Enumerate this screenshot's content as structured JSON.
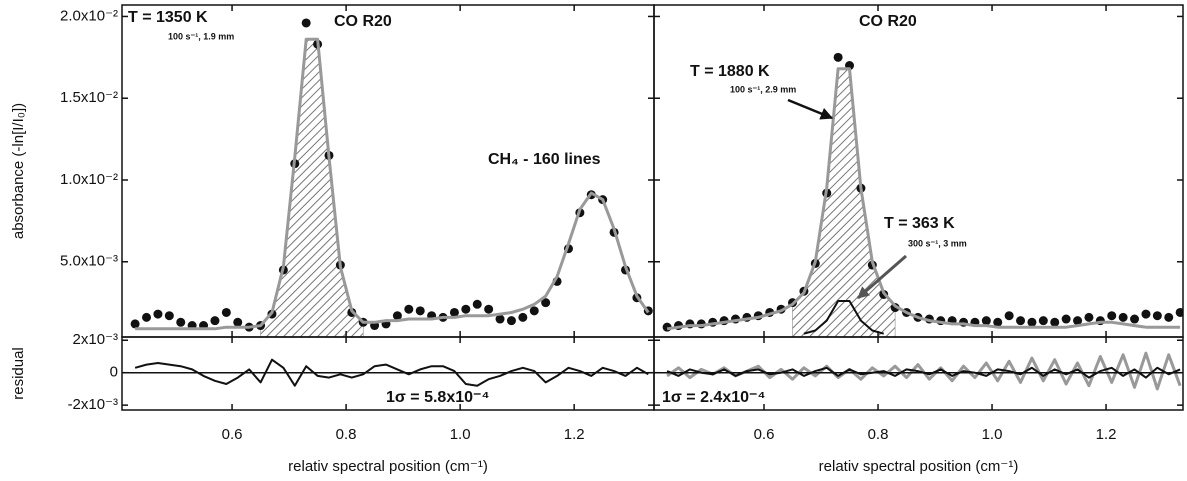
{
  "chart_data": [
    {
      "type": "scatter",
      "ylim": [
        0.0004,
        0.0207
      ],
      "xlim": [
        0.407,
        1.34
      ],
      "yticks": [
        {
          "value": 0.005,
          "label": "5.0x10⁻³"
        },
        {
          "value": 0.01,
          "label": "1.0x10⁻²"
        },
        {
          "value": 0.015,
          "label": "1.5x10⁻²"
        },
        {
          "value": 0.02,
          "label": "2.0x10⁻²"
        }
      ],
      "ytick_labels": true,
      "xticks": [
        0.6,
        0.8,
        1,
        1.2
      ],
      "xtick_labels": false,
      "ylabel": "absorbance (-ln[I/I₀])",
      "annotations": [
        "T = 1350 K",
        "100 s⁻¹, 1.9 mm",
        "CO R20",
        "CH₄ - 160 lines"
      ],
      "x": [
        0.43,
        0.45,
        0.47,
        0.49,
        0.51,
        0.53,
        0.55,
        0.57,
        0.59,
        0.61,
        0.63,
        0.65,
        0.67,
        0.69,
        0.71,
        0.73,
        0.75,
        0.77,
        0.79,
        0.81,
        0.83,
        0.85,
        0.87,
        0.89,
        0.91,
        0.93,
        0.95,
        0.97,
        0.99,
        1.01,
        1.03,
        1.05,
        1.07,
        1.09,
        1.11,
        1.13,
        1.15,
        1.17,
        1.19,
        1.21,
        1.23,
        1.25,
        1.27,
        1.29,
        1.31,
        1.33
      ],
      "series": [
        {
          "type": "hatched-area",
          "color": "#777",
          "x": [
            0.65,
            0.67,
            0.69,
            0.71,
            0.73,
            0.75,
            0.77,
            0.79,
            0.81,
            0.83
          ],
          "values": [
            0.0011,
            0.0019,
            0.0047,
            0.0114,
            0.0186,
            0.0186,
            0.0114,
            0.0047,
            0.002,
            0.0013
          ]
        },
        {
          "type": "scatter",
          "color": "#111",
          "values": [
            0.0012,
            0.0016,
            0.0018,
            0.0017,
            0.0013,
            0.0011,
            0.0011,
            0.0014,
            0.0019,
            0.0013,
            0.001,
            0.0011,
            0.0018,
            0.0045,
            0.011,
            0.0196,
            0.0183,
            0.0115,
            0.0048,
            0.0019,
            0.0013,
            0.0011,
            0.0012,
            0.0017,
            0.0021,
            0.002,
            0.0017,
            0.0016,
            0.0019,
            0.0021,
            0.0024,
            0.0021,
            0.0015,
            0.0014,
            0.0016,
            0.002,
            0.0025,
            0.0038,
            0.0058,
            0.008,
            0.0091,
            0.0088,
            0.0068,
            0.0045,
            0.0028,
            0.002
          ]
        },
        {
          "type": "line",
          "color": "#999",
          "values": [
            0.0009,
            0.0009,
            0.0009,
            0.0009,
            0.0009,
            0.0009,
            0.0009,
            0.0009,
            0.001,
            0.001,
            0.001,
            0.0011,
            0.0019,
            0.0047,
            0.0114,
            0.0186,
            0.0186,
            0.0114,
            0.0047,
            0.002,
            0.0013,
            0.0013,
            0.0014,
            0.0014,
            0.0015,
            0.0015,
            0.0015,
            0.0016,
            0.0016,
            0.0017,
            0.0017,
            0.0017,
            0.0018,
            0.0019,
            0.0021,
            0.0024,
            0.0029,
            0.0041,
            0.0061,
            0.0082,
            0.0092,
            0.0088,
            0.007,
            0.0047,
            0.0029,
            0.0019
          ]
        }
      ]
    },
    {
      "type": "line",
      "ylim": [
        -0.0023,
        0.0022
      ],
      "xlim": [
        0.407,
        1.34
      ],
      "yticks": [
        {
          "value": -0.002,
          "label": "-2x10⁻³"
        },
        0,
        {
          "value": 0.002,
          "label": "2x10⁻³"
        }
      ],
      "ytick_labels": true,
      "xticks": [
        0.6,
        0.8,
        {
          "value": 1,
          "label": "1.0"
        },
        1.2
      ],
      "xtick_labels": true,
      "zero_line": true,
      "ylabel": "residual",
      "xlabel": "relativ spectral position (cm⁻¹)",
      "annotations": [
        "1σ = 5.8x10⁻⁴"
      ],
      "x": [
        0.43,
        0.45,
        0.47,
        0.49,
        0.51,
        0.53,
        0.55,
        0.57,
        0.59,
        0.61,
        0.63,
        0.65,
        0.67,
        0.69,
        0.71,
        0.73,
        0.75,
        0.77,
        0.79,
        0.81,
        0.83,
        0.85,
        0.87,
        0.89,
        0.91,
        0.93,
        0.95,
        0.97,
        0.99,
        1.01,
        1.03,
        1.05,
        1.07,
        1.09,
        1.11,
        1.13,
        1.15,
        1.17,
        1.19,
        1.21,
        1.23,
        1.25,
        1.27,
        1.29,
        1.31,
        1.33
      ],
      "series": [
        {
          "type": "line",
          "color": "#111",
          "values": [
            0.0003,
            0.0005,
            0.0006,
            0.0005,
            0.0004,
            0.0002,
            -0.0002,
            -0.0005,
            -0.0007,
            -0.0003,
            0.0002,
            -0.0006,
            0.0008,
            0.0003,
            -0.0008,
            0.0004,
            -0.0002,
            -0.0003,
            -0.0001,
            -0.0003,
            -0.0001,
            0.0004,
            0.0005,
            0.0002,
            -0.0001,
            0.0002,
            0.0004,
            0.0004,
            0.0001,
            -0.0007,
            -0.0008,
            -0.0004,
            -0.0002,
            0.0001,
            0.0003,
            0.0001,
            -0.0006,
            -0.0002,
            0.0003,
            0.0001,
            -0.0002,
            0.0003,
            0.0001,
            -0.0002,
            0.0003,
            -0.0001
          ]
        }
      ]
    },
    {
      "type": "scatter",
      "ylim": [
        0.0004,
        0.0207
      ],
      "xlim": [
        0.407,
        1.335
      ],
      "yticks": [
        0.005,
        0.01,
        0.015,
        0.02
      ],
      "ytick_labels": false,
      "xticks": [
        0.6,
        0.8,
        1,
        1.2
      ],
      "xtick_labels": false,
      "annotations": [
        "T = 1880 K",
        "100 s⁻¹, 2.9 mm",
        "CO R20",
        "T = 363 K",
        "300 s⁻¹, 3 mm"
      ],
      "x": [
        0.43,
        0.45,
        0.47,
        0.49,
        0.51,
        0.53,
        0.55,
        0.57,
        0.59,
        0.61,
        0.63,
        0.65,
        0.67,
        0.69,
        0.71,
        0.73,
        0.75,
        0.77,
        0.79,
        0.81,
        0.83,
        0.85,
        0.87,
        0.89,
        0.91,
        0.93,
        0.95,
        0.97,
        0.99,
        1.01,
        1.03,
        1.05,
        1.07,
        1.09,
        1.11,
        1.13,
        1.15,
        1.17,
        1.19,
        1.21,
        1.23,
        1.25,
        1.27,
        1.29,
        1.31,
        1.33
      ],
      "series": [
        {
          "type": "hatched-area",
          "color": "#777",
          "x": [
            0.65,
            0.67,
            0.69,
            0.71,
            0.73,
            0.75,
            0.77,
            0.79,
            0.81,
            0.83
          ],
          "values": [
            0.0024,
            0.0031,
            0.005,
            0.0095,
            0.0168,
            0.0168,
            0.0095,
            0.005,
            0.0031,
            0.0023
          ]
        },
        {
          "type": "scatter",
          "color": "#111",
          "values": [
            0.001,
            0.0011,
            0.0012,
            0.0012,
            0.0013,
            0.0014,
            0.0015,
            0.0016,
            0.0017,
            0.0019,
            0.0021,
            0.0025,
            0.0032,
            0.0049,
            0.0092,
            0.0175,
            0.017,
            0.0095,
            0.0048,
            0.003,
            0.0022,
            0.0019,
            0.0016,
            0.0015,
            0.0014,
            0.0014,
            0.0013,
            0.0013,
            0.0014,
            0.0013,
            0.0017,
            0.0014,
            0.0013,
            0.0014,
            0.0013,
            0.0015,
            0.0014,
            0.0016,
            0.0014,
            0.0017,
            0.0016,
            0.0015,
            0.0018,
            0.0017,
            0.0016,
            0.0019
          ]
        },
        {
          "type": "line",
          "color": "#999",
          "values": [
            0.0009,
            0.001,
            0.0011,
            0.0011,
            0.0012,
            0.0013,
            0.0014,
            0.0015,
            0.0016,
            0.0018,
            0.002,
            0.0024,
            0.0031,
            0.005,
            0.0095,
            0.0168,
            0.0168,
            0.0095,
            0.005,
            0.0031,
            0.0023,
            0.0019,
            0.0016,
            0.0014,
            0.0013,
            0.0012,
            0.0012,
            0.0011,
            0.0011,
            0.001,
            0.001,
            0.001,
            0.001,
            0.001,
            0.001,
            0.001,
            0.0011,
            0.0012,
            0.0013,
            0.0013,
            0.0012,
            0.0011,
            0.001,
            0.001,
            0.001,
            0.001
          ]
        },
        {
          "type": "line",
          "color": "#111",
          "x": [
            0.67,
            0.69,
            0.71,
            0.73,
            0.75,
            0.77,
            0.79,
            0.81
          ],
          "values": [
            0.0006,
            0.0008,
            0.0014,
            0.0026,
            0.0026,
            0.0014,
            0.0008,
            0.0006
          ]
        }
      ]
    },
    {
      "type": "line",
      "ylim": [
        -0.0023,
        0.0022
      ],
      "xlim": [
        0.407,
        1.335
      ],
      "yticks": [
        -0.002,
        0,
        0.002
      ],
      "ytick_labels": false,
      "xticks": [
        0.6,
        0.8,
        {
          "value": 1,
          "label": "1.0"
        },
        1.2
      ],
      "xtick_labels": true,
      "zero_line": true,
      "xlabel": "relativ spectral position (cm⁻¹)",
      "annotations": [
        "1σ = 2.4x10⁻⁴"
      ],
      "x": [
        0.43,
        0.45,
        0.47,
        0.49,
        0.51,
        0.53,
        0.55,
        0.57,
        0.59,
        0.61,
        0.63,
        0.65,
        0.67,
        0.69,
        0.71,
        0.73,
        0.75,
        0.77,
        0.79,
        0.81,
        0.83,
        0.85,
        0.87,
        0.89,
        0.91,
        0.93,
        0.95,
        0.97,
        0.99,
        1.01,
        1.03,
        1.05,
        1.07,
        1.09,
        1.11,
        1.13,
        1.15,
        1.17,
        1.19,
        1.21,
        1.23,
        1.25,
        1.27,
        1.29,
        1.31,
        1.33
      ],
      "series": [
        {
          "type": "line",
          "color": "#999",
          "values": [
            -0.0002,
            0.0003,
            -0.0003,
            0.0002,
            -0.0001,
            0.0003,
            -0.0002,
            0.0001,
            0.0004,
            -0.0003,
            0.0002,
            -0.0004,
            0.0003,
            -0.0002,
            0.0004,
            -0.0003,
            0.0002,
            -0.0004,
            0.0003,
            -0.0002,
            0.0004,
            -0.0003,
            0.0005,
            -0.0004,
            0.0003,
            -0.0005,
            0.0004,
            -0.0003,
            0.0006,
            -0.0005,
            0.0007,
            -0.0006,
            0.0009,
            -0.0005,
            0.0008,
            -0.0007,
            0.0006,
            -0.0008,
            0.001,
            -0.0006,
            0.0011,
            -0.0009,
            0.0012,
            -0.001,
            0.0011,
            -0.0008
          ]
        },
        {
          "type": "line",
          "color": "#111",
          "values": [
            0.0001,
            -0.0002,
            0.0002,
            0,
            -0.0001,
            0.0002,
            -0.0002,
            0.0001,
            0.0002,
            -0.0001,
            0,
            0.0002,
            -0.0002,
            0.0001,
            0.0003,
            -0.0002,
            0.0002,
            -0.0001,
            0,
            0.0001,
            -0.0002,
            0.0002,
            0.0001,
            -0.0001,
            0.0002,
            -0.0002,
            0.0001,
            0,
            -0.0002,
            0.0002,
            0.0001,
            -0.0001,
            0.0003,
            -0.0002,
            0.0002,
            -0.0001,
            0.0002,
            -0.0003,
            0.0001,
            0.0003,
            -0.0002,
            0.0002,
            -0.0003,
            0.0003,
            -0.0001,
            0.0002
          ]
        }
      ]
    }
  ]
}
